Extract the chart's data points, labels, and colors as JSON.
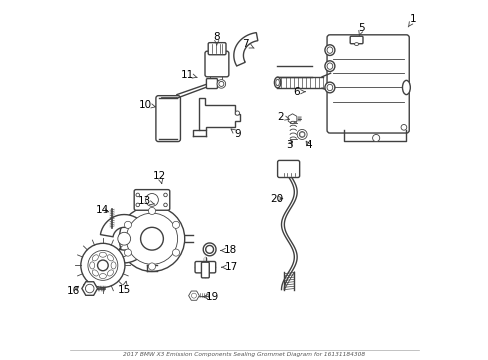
{
  "title": "2017 BMW X3 Emission Components Sealing Grommet Diagram for 16131184308",
  "bg": "#ffffff",
  "lc": "#404040",
  "figsize": [
    4.89,
    3.6
  ],
  "dpi": 100,
  "labels": {
    "1": [
      0.96,
      0.93,
      0.975,
      0.952
    ],
    "2": [
      0.628,
      0.67,
      0.6,
      0.678
    ],
    "3": [
      0.64,
      0.618,
      0.627,
      0.598
    ],
    "4": [
      0.668,
      0.618,
      0.68,
      0.598
    ],
    "5": [
      0.822,
      0.905,
      0.83,
      0.928
    ],
    "6": [
      0.672,
      0.748,
      0.645,
      0.748
    ],
    "7": [
      0.528,
      0.87,
      0.503,
      0.882
    ],
    "8": [
      0.422,
      0.878,
      0.422,
      0.902
    ],
    "9": [
      0.46,
      0.645,
      0.482,
      0.628
    ],
    "10": [
      0.252,
      0.705,
      0.222,
      0.712
    ],
    "11": [
      0.368,
      0.788,
      0.34,
      0.796
    ],
    "12": [
      0.268,
      0.488,
      0.262,
      0.512
    ],
    "13": [
      0.248,
      0.432,
      0.22,
      0.44
    ],
    "14": [
      0.128,
      0.408,
      0.102,
      0.415
    ],
    "15": [
      0.168,
      0.218,
      0.162,
      0.192
    ],
    "16": [
      0.042,
      0.208,
      0.018,
      0.188
    ],
    "17": [
      0.435,
      0.255,
      0.462,
      0.255
    ],
    "18": [
      0.432,
      0.302,
      0.46,
      0.302
    ],
    "19": [
      0.382,
      0.172,
      0.41,
      0.172
    ],
    "20": [
      0.618,
      0.448,
      0.592,
      0.448
    ]
  }
}
